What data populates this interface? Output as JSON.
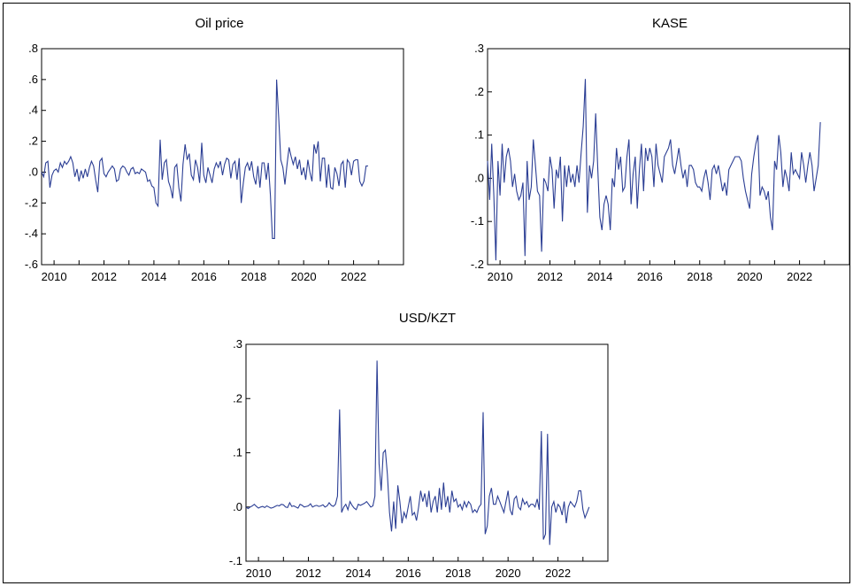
{
  "series_color": "#2b3e94",
  "chart_data": [
    {
      "type": "line",
      "title": "Oil price",
      "xlim": [
        2009.5,
        2024.0
      ],
      "ylim": [
        -0.6,
        0.8
      ],
      "yticks": [
        -0.6,
        -0.4,
        -0.2,
        0.0,
        0.2,
        0.4,
        0.6,
        0.8
      ],
      "ytick_labels": [
        "-.6",
        "-.4",
        "-.2",
        ".0",
        ".2",
        ".4",
        ".6",
        ".8"
      ],
      "xticks": [
        2010,
        2012,
        2014,
        2016,
        2018,
        2020,
        2022
      ],
      "xtick_labels": [
        "2010",
        "2012",
        "2014",
        "2016",
        "2018",
        "2020",
        "2022"
      ],
      "series": [
        {
          "start": 2009.5,
          "step": 0.08333,
          "values": [
            0.0,
            -0.03,
            0.06,
            0.07,
            -0.1,
            -0.02,
            0.01,
            0.02,
            0.0,
            0.06,
            0.03,
            0.07,
            0.05,
            0.07,
            0.1,
            0.06,
            -0.03,
            0.02,
            -0.06,
            0.01,
            -0.04,
            0.02,
            -0.03,
            0.03,
            0.07,
            0.04,
            -0.05,
            -0.13,
            0.07,
            0.09,
            -0.01,
            -0.03,
            0.0,
            0.02,
            0.04,
            0.02,
            -0.06,
            -0.05,
            0.02,
            0.04,
            0.03,
            0.0,
            -0.02,
            0.02,
            0.03,
            -0.01,
            0.0,
            -0.01,
            0.02,
            0.01,
            0.0,
            -0.06,
            -0.05,
            -0.09,
            -0.1,
            -0.2,
            -0.22,
            0.21,
            -0.05,
            0.06,
            0.08,
            -0.06,
            -0.1,
            -0.17,
            0.03,
            0.05,
            -0.1,
            -0.19,
            0.05,
            0.18,
            0.08,
            0.12,
            -0.02,
            -0.05,
            0.08,
            0.03,
            -0.07,
            0.19,
            -0.02,
            -0.07,
            0.03,
            -0.02,
            -0.07,
            0.02,
            0.06,
            0.03,
            0.07,
            -0.02,
            0.05,
            0.09,
            0.08,
            -0.04,
            0.05,
            0.07,
            -0.05,
            0.09,
            -0.2,
            -0.07,
            0.03,
            0.06,
            0.01,
            0.07,
            -0.03,
            -0.08,
            0.04,
            -0.1,
            0.06,
            0.06,
            -0.05,
            0.06,
            -0.15,
            -0.43,
            -0.43,
            0.6,
            0.35,
            0.08,
            0.03,
            -0.08,
            0.05,
            0.16,
            0.1,
            0.05,
            0.1,
            0.02,
            0.08,
            -0.02,
            0.03,
            -0.05,
            0.08,
            0.0,
            -0.06,
            0.18,
            0.12,
            0.2,
            -0.06,
            0.09,
            0.09,
            -0.1,
            0.05,
            -0.1,
            -0.11,
            0.03,
            -0.01,
            -0.09,
            0.05,
            0.07,
            -0.1,
            0.08,
            0.06,
            -0.02,
            0.07,
            0.08,
            0.08,
            -0.06,
            -0.09,
            -0.06,
            0.04,
            0.04
          ]
        }
      ]
    },
    {
      "type": "line",
      "title": "KASE",
      "xlim": [
        2009.5,
        2024.0
      ],
      "ylim": [
        -0.2,
        0.3
      ],
      "yticks": [
        -0.2,
        -0.1,
        0.0,
        0.1,
        0.2,
        0.3
      ],
      "ytick_labels": [
        "-.2",
        "-.1",
        ".0",
        ".1",
        ".2",
        ".3"
      ],
      "xticks": [
        2010,
        2012,
        2014,
        2016,
        2018,
        2020,
        2022
      ],
      "xtick_labels": [
        "2010",
        "2012",
        "2014",
        "2016",
        "2018",
        "2020",
        "2022"
      ],
      "series": [
        {
          "start": 2009.5,
          "step": 0.08333,
          "values": [
            0.04,
            -0.05,
            0.08,
            -0.04,
            -0.19,
            0.04,
            -0.04,
            0.08,
            -0.01,
            0.05,
            0.07,
            0.04,
            -0.02,
            0.01,
            -0.03,
            -0.05,
            -0.04,
            -0.01,
            -0.18,
            0.04,
            -0.05,
            -0.02,
            0.09,
            0.03,
            -0.03,
            -0.04,
            -0.17,
            0.0,
            -0.01,
            -0.03,
            0.05,
            0.02,
            -0.07,
            0.02,
            0.0,
            0.05,
            -0.1,
            0.03,
            -0.02,
            0.03,
            -0.01,
            0.01,
            -0.02,
            0.03,
            -0.01,
            0.06,
            0.12,
            0.23,
            -0.08,
            0.03,
            0.0,
            0.04,
            0.15,
            0.02,
            -0.09,
            -0.12,
            -0.06,
            -0.04,
            -0.06,
            -0.12,
            0.0,
            -0.02,
            0.07,
            0.02,
            0.05,
            -0.03,
            -0.02,
            0.05,
            0.09,
            -0.06,
            0.01,
            0.05,
            -0.07,
            0.02,
            0.08,
            -0.03,
            0.07,
            0.04,
            0.07,
            0.05,
            -0.02,
            0.08,
            0.03,
            0.01,
            -0.01,
            0.05,
            0.06,
            0.07,
            0.09,
            0.03,
            0.01,
            0.04,
            0.07,
            0.03,
            0.0,
            0.02,
            -0.02,
            0.03,
            0.03,
            0.02,
            -0.01,
            -0.02,
            -0.02,
            -0.03,
            0.0,
            0.02,
            -0.01,
            -0.05,
            0.02,
            0.03,
            0.01,
            0.03,
            0.0,
            -0.03,
            -0.01,
            -0.04,
            0.02,
            0.03,
            0.04,
            0.05,
            0.05,
            0.05,
            0.04,
            0.0,
            -0.03,
            -0.05,
            -0.07,
            0.01,
            0.05,
            0.08,
            0.1,
            -0.04,
            -0.02,
            -0.03,
            -0.05,
            -0.03,
            -0.09,
            -0.12,
            0.04,
            0.02,
            0.1,
            0.06,
            -0.02,
            0.02,
            0.0,
            -0.03,
            0.06,
            0.01,
            0.02,
            0.01,
            0.0,
            0.06,
            0.03,
            -0.01,
            0.03,
            0.06,
            0.03,
            -0.03,
            0.0,
            0.03,
            0.13
          ]
        }
      ]
    },
    {
      "type": "line",
      "title": "USD/KZT",
      "xlim": [
        2009.5,
        2024.0
      ],
      "ylim": [
        -0.1,
        0.3
      ],
      "yticks": [
        -0.1,
        0.0,
        0.1,
        0.2,
        0.3
      ],
      "ytick_labels": [
        "-.1",
        ".0",
        ".1",
        ".2",
        ".3"
      ],
      "xticks": [
        2010,
        2012,
        2014,
        2016,
        2018,
        2020,
        2022
      ],
      "xtick_labels": [
        "2010",
        "2012",
        "2014",
        "2016",
        "2018",
        "2020",
        "2022"
      ],
      "series": [
        {
          "start": 2009.5,
          "step": 0.08333,
          "values": [
            0.0,
            -0.003,
            0.0,
            0.002,
            0.005,
            0.001,
            -0.002,
            0.0,
            0.001,
            -0.001,
            0.002,
            0.0,
            -0.002,
            -0.001,
            0.001,
            0.003,
            0.002,
            0.005,
            0.004,
            0.0,
            -0.001,
            0.008,
            0.001,
            0.002,
            0.0,
            -0.002,
            0.005,
            0.003,
            0.0,
            0.001,
            0.002,
            0.006,
            0.0,
            0.002,
            0.003,
            0.001,
            0.002,
            0.004,
            0.0,
            0.002,
            0.008,
            0.003,
            0.001,
            0.005,
            0.02,
            0.18,
            -0.01,
            0.0,
            0.005,
            -0.005,
            0.01,
            0.003,
            -0.002,
            -0.005,
            0.005,
            0.003,
            0.005,
            0.007,
            0.01,
            0.005,
            0.0,
            0.002,
            0.02,
            0.27,
            0.08,
            0.03,
            0.1,
            0.105,
            0.06,
            -0.01,
            -0.045,
            0.01,
            -0.04,
            0.04,
            0.01,
            -0.03,
            -0.01,
            -0.02,
            0.0,
            0.02,
            -0.015,
            -0.01,
            -0.025,
            0.0,
            0.03,
            0.01,
            0.025,
            0.0,
            0.03,
            -0.01,
            0.01,
            0.02,
            -0.01,
            0.035,
            -0.005,
            0.045,
            0.0,
            0.02,
            -0.01,
            0.03,
            0.01,
            0.015,
            0.0,
            0.005,
            -0.005,
            0.01,
            0.0,
            0.01,
            0.005,
            -0.01,
            -0.005,
            -0.01,
            0.0,
            0.005,
            0.175,
            -0.05,
            -0.035,
            0.02,
            0.035,
            0.005,
            0.005,
            0.02,
            0.01,
            0.0,
            -0.01,
            0.01,
            0.03,
            -0.005,
            -0.015,
            0.015,
            0.02,
            0.0,
            -0.005,
            0.015,
            0.005,
            0.01,
            0.0,
            0.005,
            0.005,
            0.0,
            0.015,
            -0.005,
            0.14,
            -0.06,
            -0.05,
            0.135,
            -0.07,
            0.0,
            0.01,
            -0.01,
            0.005,
            0.0,
            -0.015,
            0.01,
            -0.03,
            0.0,
            0.01,
            0.005,
            0.0,
            0.01,
            0.03,
            0.03,
            -0.005,
            -0.02,
            -0.01,
            0.0
          ]
        }
      ]
    }
  ]
}
